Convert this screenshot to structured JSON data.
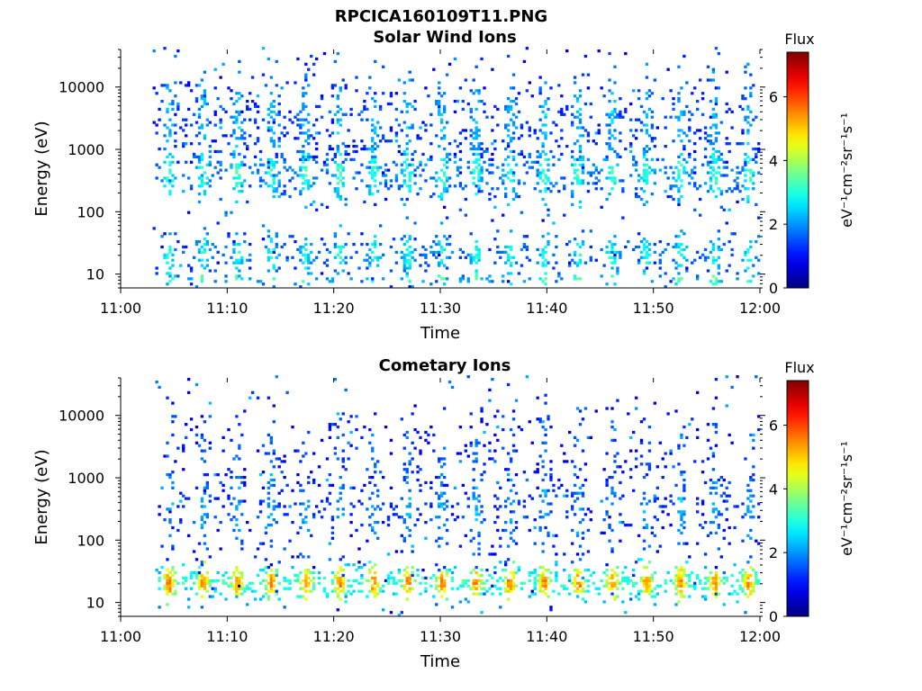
{
  "figure_title": "RPCICA160109T11.PNG",
  "chart_data": [
    {
      "type": "heatmap",
      "title": "Solar Wind Ions",
      "xlabel": "Time",
      "ylabel": "Energy (eV)",
      "x_range": [
        "11:00",
        "12:00"
      ],
      "x_ticks": [
        "11:00",
        "11:10",
        "11:20",
        "11:30",
        "11:40",
        "11:50",
        "12:00"
      ],
      "y_scale": "log",
      "y_range": [
        6,
        40000
      ],
      "y_ticks": [
        "10",
        "100",
        "1000",
        "10000"
      ],
      "colorbar": {
        "title": "Flux",
        "label": "eV⁻¹cm⁻²sr⁻¹s⁻¹",
        "range": [
          0,
          7.4
        ],
        "ticks": [
          "0",
          "2",
          "4",
          "6"
        ],
        "colormap": "jet"
      },
      "data_start_time": "11:03",
      "sweep_period_minutes": 3.2,
      "energy_bands": [
        {
          "center_eV": 400,
          "spread_decades": 0.35,
          "flux": 3.2,
          "density": 0.55
        },
        {
          "center_eV": 3000,
          "spread_decades": 0.6,
          "flux": 2.4,
          "density": 0.28
        },
        {
          "center_eV": 20,
          "spread_decades": 0.25,
          "flux": 3.0,
          "density": 0.45
        },
        {
          "center_eV": 8,
          "spread_decades": 0.08,
          "flux": 3.6,
          "density": 0.35
        }
      ]
    },
    {
      "type": "heatmap",
      "title": "Cometary Ions",
      "xlabel": "Time",
      "ylabel": "Energy (eV)",
      "x_range": [
        "11:00",
        "12:00"
      ],
      "x_ticks": [
        "11:00",
        "11:10",
        "11:20",
        "11:30",
        "11:40",
        "11:50",
        "12:00"
      ],
      "y_scale": "log",
      "y_range": [
        6,
        40000
      ],
      "y_ticks": [
        "10",
        "100",
        "1000",
        "10000"
      ],
      "colorbar": {
        "title": "Flux",
        "label": "eV⁻¹cm⁻²sr⁻¹s⁻¹",
        "range": [
          0,
          7.4
        ],
        "ticks": [
          "0",
          "2",
          "4",
          "6"
        ],
        "colormap": "jet"
      },
      "data_start_time": "11:03",
      "sweep_period_minutes": 3.2,
      "energy_bands": [
        {
          "center_eV": 20,
          "spread_decades": 0.2,
          "flux": 5.6,
          "density": 0.9
        },
        {
          "center_eV": 300,
          "spread_decades": 0.6,
          "flux": 2.2,
          "density": 0.25
        },
        {
          "center_eV": 3000,
          "spread_decades": 0.5,
          "flux": 1.8,
          "density": 0.12
        }
      ]
    }
  ]
}
